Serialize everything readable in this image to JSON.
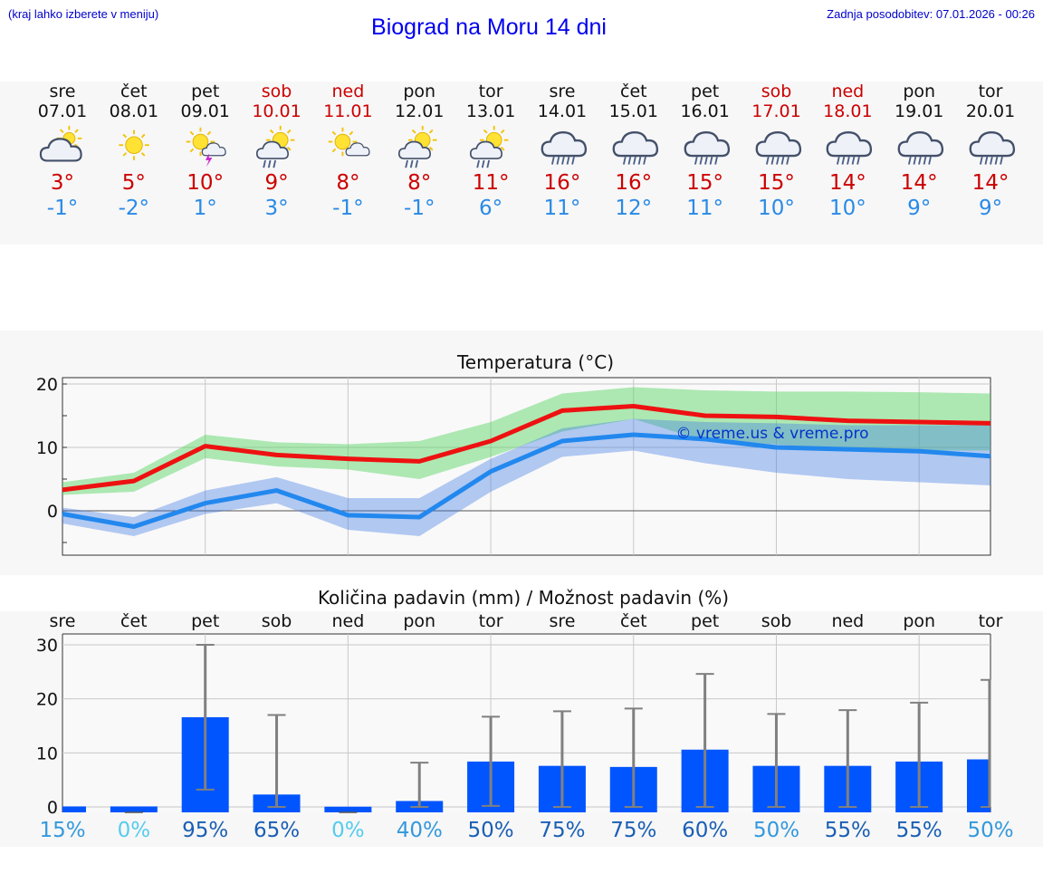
{
  "header": {
    "hint": "(kraj lahko izberete v meniju)",
    "title": "Biograd na Moru 14 dni",
    "updated": "Zadnja posodobitev: 07.01.2026 - 00:26"
  },
  "days": [
    {
      "name": "sre",
      "date": "07.01",
      "weekend": false,
      "icon": "cloudy-sun-icon",
      "tmax": "3°",
      "tmin": "-1°",
      "pct": "15%",
      "pct_color": "#3399dd"
    },
    {
      "name": "čet",
      "date": "08.01",
      "weekend": false,
      "icon": "sun-icon",
      "tmax": "5°",
      "tmin": "-2°",
      "pct": "0%",
      "pct_color": "#55ccee"
    },
    {
      "name": "pet",
      "date": "09.01",
      "weekend": false,
      "icon": "sun-storm-icon",
      "tmax": "10°",
      "tmin": "1°",
      "pct": "95%",
      "pct_color": "#1a5fb4"
    },
    {
      "name": "sob",
      "date": "10.01",
      "weekend": true,
      "icon": "sun-rain-icon",
      "tmax": "9°",
      "tmin": "3°",
      "pct": "65%",
      "pct_color": "#1a5fb4"
    },
    {
      "name": "ned",
      "date": "11.01",
      "weekend": true,
      "icon": "sun-cloud-icon",
      "tmax": "8°",
      "tmin": "-1°",
      "pct": "0%",
      "pct_color": "#55ccee"
    },
    {
      "name": "pon",
      "date": "12.01",
      "weekend": false,
      "icon": "sun-rain-icon",
      "tmax": "8°",
      "tmin": "-1°",
      "pct": "40%",
      "pct_color": "#3399dd"
    },
    {
      "name": "tor",
      "date": "13.01",
      "weekend": false,
      "icon": "sun-rain-icon",
      "tmax": "11°",
      "tmin": "6°",
      "pct": "50%",
      "pct_color": "#1a5fb4"
    },
    {
      "name": "sre",
      "date": "14.01",
      "weekend": false,
      "icon": "rain-cloud-icon",
      "tmax": "16°",
      "tmin": "11°",
      "pct": "75%",
      "pct_color": "#1a5fb4"
    },
    {
      "name": "čet",
      "date": "15.01",
      "weekend": false,
      "icon": "rain-cloud-icon",
      "tmax": "16°",
      "tmin": "12°",
      "pct": "75%",
      "pct_color": "#1a5fb4"
    },
    {
      "name": "pet",
      "date": "16.01",
      "weekend": false,
      "icon": "rain-cloud-icon",
      "tmax": "15°",
      "tmin": "11°",
      "pct": "60%",
      "pct_color": "#1a5fb4"
    },
    {
      "name": "sob",
      "date": "17.01",
      "weekend": true,
      "icon": "rain-cloud-icon",
      "tmax": "15°",
      "tmin": "10°",
      "pct": "50%",
      "pct_color": "#3399dd"
    },
    {
      "name": "ned",
      "date": "18.01",
      "weekend": true,
      "icon": "rain-cloud-icon",
      "tmax": "14°",
      "tmin": "10°",
      "pct": "55%",
      "pct_color": "#1a5fb4"
    },
    {
      "name": "pon",
      "date": "19.01",
      "weekend": false,
      "icon": "rain-cloud-icon",
      "tmax": "14°",
      "tmin": "9°",
      "pct": "55%",
      "pct_color": "#1a5fb4"
    },
    {
      "name": "tor",
      "date": "20.01",
      "weekend": false,
      "icon": "rain-cloud-icon",
      "tmax": "14°",
      "tmin": "9°",
      "pct": "50%",
      "pct_color": "#3399dd"
    }
  ],
  "chart_data": [
    {
      "type": "line",
      "title": "Temperatura (°C)",
      "watermark": "© vreme.us & vreme.pro",
      "ylim": [
        -7,
        21
      ],
      "yticks": [
        0,
        10,
        20
      ],
      "x": [
        0,
        1,
        2,
        3,
        4,
        5,
        6,
        7,
        8,
        9,
        10,
        11,
        12,
        13
      ],
      "series": [
        {
          "name": "max",
          "color": "#ee1111",
          "values": [
            3.3,
            4.7,
            10.2,
            8.8,
            8.2,
            7.8,
            11.0,
            15.8,
            16.5,
            15.0,
            14.8,
            14.2,
            14.0,
            13.8
          ],
          "band_low": [
            2.5,
            3.0,
            8.3,
            7.0,
            6.5,
            5.0,
            8.5,
            12.5,
            14.5,
            11.0,
            10.5,
            9.5,
            9.5,
            9.5
          ],
          "band_high": [
            4.5,
            6.0,
            12.0,
            10.8,
            10.5,
            11.0,
            14.0,
            18.5,
            19.5,
            19.0,
            18.8,
            18.8,
            18.7,
            18.5
          ]
        },
        {
          "name": "min",
          "color": "#2288ee",
          "values": [
            -0.5,
            -2.5,
            1.2,
            3.2,
            -0.7,
            -1.0,
            6.2,
            11.0,
            12.0,
            11.3,
            10.0,
            9.7,
            9.4,
            8.6
          ],
          "band_low": [
            -2.0,
            -4.0,
            -0.5,
            1.2,
            -3.0,
            -4.0,
            3.0,
            8.5,
            9.5,
            7.5,
            6.0,
            5.0,
            4.5,
            4.0
          ],
          "band_high": [
            0.5,
            -1.0,
            3.2,
            5.3,
            2.0,
            2.0,
            8.2,
            13.0,
            14.5,
            14.0,
            13.8,
            13.5,
            13.5,
            13.5
          ]
        }
      ]
    },
    {
      "type": "bar",
      "title": "Količina padavin (mm) / Možnost padavin (%)",
      "ylim": [
        -1,
        32
      ],
      "yticks": [
        0,
        10,
        20,
        30
      ],
      "categories": [
        "sre",
        "čet",
        "pet",
        "sob",
        "ned",
        "pon",
        "tor",
        "sre",
        "čet",
        "pet",
        "sob",
        "ned",
        "pon",
        "tor"
      ],
      "values": [
        0.1,
        0.1,
        16.6,
        2.3,
        0.05,
        1.1,
        8.4,
        7.6,
        7.4,
        10.6,
        7.6,
        7.6,
        8.4,
        8.8
      ],
      "error_high": [
        0,
        0.1,
        30.0,
        17.0,
        0.05,
        8.2,
        16.7,
        17.7,
        18.2,
        24.6,
        17.2,
        17.9,
        19.3,
        23.5
      ],
      "error_low": [
        0,
        0,
        3.2,
        0,
        0,
        0,
        0.2,
        0,
        0,
        0,
        0,
        0,
        0,
        0
      ],
      "bar_color": "#0055ff"
    }
  ]
}
